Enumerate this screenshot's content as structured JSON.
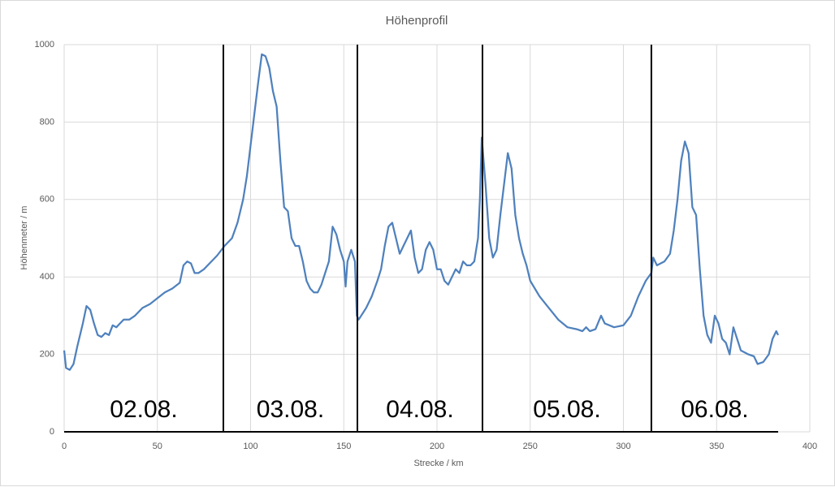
{
  "chart_data": {
    "type": "line",
    "title": "Höhenprofil",
    "x_label": "Strecke / km",
    "y_label": "Höhenmeter / m",
    "series": [
      {
        "name": "Höhenprofil",
        "color": "#4f81bd",
        "x": [
          0,
          1,
          3,
          5,
          7,
          10,
          12,
          14,
          16,
          18,
          20,
          22,
          24,
          26,
          28,
          30,
          32,
          35,
          38,
          42,
          46,
          50,
          54,
          58,
          62,
          64,
          66,
          68,
          70,
          72,
          75,
          78,
          82,
          86,
          90,
          93,
          96,
          98,
          100,
          102,
          104,
          106,
          108,
          110,
          112,
          114,
          116,
          118,
          120,
          122,
          124,
          126,
          128,
          130,
          132,
          134,
          136,
          138,
          140,
          142,
          144,
          146,
          148,
          150,
          151,
          152,
          154,
          156,
          157,
          158,
          162,
          165,
          168,
          170,
          172,
          174,
          176,
          178,
          180,
          182,
          184,
          186,
          188,
          190,
          192,
          194,
          196,
          198,
          200,
          202,
          204,
          206,
          208,
          210,
          212,
          214,
          216,
          218,
          220,
          222,
          223,
          224,
          226,
          228,
          230,
          232,
          234,
          236,
          238,
          240,
          242,
          244,
          246,
          248,
          250,
          255,
          260,
          265,
          270,
          275,
          278,
          280,
          282,
          285,
          288,
          290,
          295,
          300,
          304,
          308,
          312,
          315,
          316,
          318,
          322,
          325,
          327,
          329,
          331,
          333,
          335,
          337,
          339,
          341,
          343,
          345,
          347,
          349,
          351,
          353,
          355,
          357,
          359,
          361,
          363,
          367,
          370,
          372,
          375,
          378,
          380,
          382,
          383
        ],
        "values": [
          210,
          165,
          160,
          175,
          220,
          280,
          325,
          315,
          280,
          250,
          245,
          255,
          250,
          275,
          270,
          280,
          290,
          290,
          300,
          320,
          330,
          345,
          360,
          370,
          385,
          430,
          440,
          435,
          410,
          410,
          420,
          435,
          455,
          480,
          500,
          540,
          600,
          660,
          740,
          820,
          900,
          975,
          970,
          940,
          880,
          840,
          700,
          580,
          570,
          500,
          480,
          480,
          440,
          390,
          370,
          360,
          360,
          380,
          410,
          440,
          530,
          510,
          470,
          440,
          375,
          440,
          470,
          440,
          300,
          290,
          320,
          350,
          390,
          420,
          480,
          530,
          540,
          500,
          460,
          480,
          500,
          520,
          450,
          410,
          420,
          470,
          490,
          470,
          420,
          420,
          390,
          380,
          400,
          420,
          410,
          440,
          430,
          430,
          440,
          500,
          600,
          760,
          640,
          500,
          450,
          470,
          560,
          640,
          720,
          680,
          560,
          500,
          460,
          430,
          390,
          350,
          320,
          290,
          270,
          265,
          260,
          270,
          260,
          265,
          300,
          280,
          270,
          275,
          300,
          350,
          390,
          410,
          450,
          430,
          440,
          460,
          520,
          600,
          700,
          750,
          720,
          580,
          560,
          420,
          300,
          250,
          230,
          300,
          280,
          240,
          230,
          200,
          270,
          240,
          210,
          200,
          195,
          175,
          180,
          200,
          240,
          260,
          250
        ]
      }
    ],
    "dividers": [
      85.4,
      157.3,
      224.4,
      315
    ],
    "day_labels": [
      "02.08.",
      "03.08.",
      "04.08.",
      "05.08.",
      "06.08."
    ],
    "xlim": [
      0,
      400
    ],
    "xticks": [
      0,
      50,
      100,
      150,
      200,
      250,
      300,
      350,
      400
    ],
    "ylim": [
      0,
      1000
    ],
    "yticks": [
      0,
      200,
      400,
      600,
      800,
      1000
    ],
    "grid": true
  }
}
